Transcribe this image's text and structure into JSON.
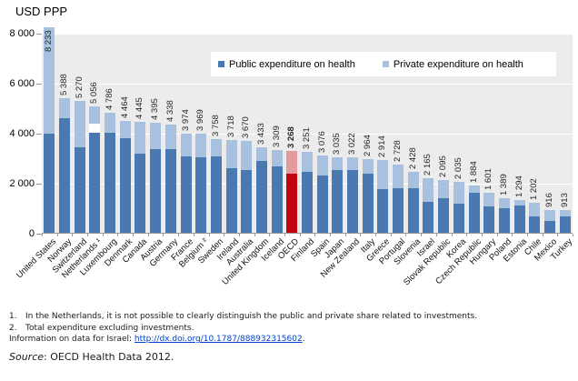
{
  "chart_title": "USD PPP",
  "chart_data": {
    "type": "bar",
    "stacked": true,
    "title": "USD PPP",
    "ylim": [
      0,
      8000
    ],
    "yticks": [
      0,
      2000,
      4000,
      6000,
      8000
    ],
    "ytick_labels": [
      "0",
      "2 000",
      "4 000",
      "6 000",
      "8 000"
    ],
    "grid": "horizontal",
    "legend_position": "top-right-inside",
    "categories": [
      "United States",
      "Norway",
      "Switzerland",
      "Netherlands ¹",
      "Luxembourg",
      "Denmark",
      "Canada",
      "Austria",
      "Germany",
      "France",
      "Belgium ²",
      "Sweden",
      "Ireland",
      "Australia",
      "United Kingdom",
      "Iceland",
      "OECD",
      "Finland",
      "Spain",
      "Japan",
      "New Zealand",
      "Italy",
      "Greece",
      "Portugal",
      "Slovenia",
      "Israel",
      "Slovak Republic",
      "Korea",
      "Czech Republic",
      "Hungary",
      "Poland",
      "Estonia",
      "Chile",
      "Mexico",
      "Turkey"
    ],
    "series": [
      {
        "name": "Public expenditure on health",
        "color": "#4a79b2",
        "values": [
          3967,
          4580,
          3430,
          4010,
          4010,
          3800,
          3160,
          3336,
          3330,
          3060,
          3018,
          3043,
          2582,
          2520,
          2856,
          2656,
          2360,
          2450,
          2280,
          2500,
          2520,
          2360,
          1745,
          1800,
          1770,
          1250,
          1370,
          1165,
          1590,
          1065,
          982,
          1080,
          640,
          480,
          670
        ]
      },
      {
        "name": "Private expenditure on health",
        "color": "#a7c1df",
        "values": [
          4266,
          808,
          1840,
          682,
          776,
          664,
          1285,
          1059,
          1008,
          914,
          951,
          715,
          1136,
          1150,
          577,
          653,
          908,
          801,
          796,
          535,
          502,
          604,
          1169,
          928,
          658,
          915,
          725,
          870,
          294,
          536,
          407,
          214,
          562,
          436,
          243
        ]
      }
    ],
    "totals": [
      8233,
      5388,
      5270,
      5056,
      4786,
      4464,
      4445,
      4395,
      4338,
      3974,
      3969,
      3758,
      3718,
      3670,
      3433,
      3309,
      3268,
      3251,
      3076,
      3035,
      3022,
      2964,
      2914,
      2728,
      2428,
      2165,
      2095,
      2035,
      1884,
      1601,
      1389,
      1294,
      1202,
      916,
      913
    ],
    "total_labels": [
      "8 233",
      "5 388",
      "5 270",
      "5 056",
      "4 786",
      "4 464",
      "4 445",
      "4 395",
      "4 338",
      "3 974",
      "3 969",
      "3 758",
      "3 718",
      "3 670",
      "3 433",
      "3 309",
      "3 268",
      "3 251",
      "3 076",
      "3 035",
      "3 022",
      "2 964",
      "2 914",
      "2 728",
      "2 428",
      "2 165",
      "2 095",
      "2 035",
      "1 884",
      "1 601",
      "1 389",
      "1 294",
      "1 202",
      "916",
      "913"
    ],
    "highlight": {
      "category": "OECD",
      "index": 16,
      "public_color": "#c00511",
      "private_color": "#e29a9e"
    },
    "special_gap": {
      "index": 3,
      "gap_value": 364,
      "color": "#ffffff"
    }
  },
  "legend_items": [
    {
      "label": "Public expenditure on health",
      "color": "#4a79b2"
    },
    {
      "label": "Private expenditure on health",
      "color": "#a7c1df"
    }
  ],
  "footnotes": {
    "note1_num": "1.",
    "note1": "In the Netherlands, it is not possible to clearly distinguish the public and private share related to investments.",
    "note2_num": "2.",
    "note2": "Total expenditure excluding investments.",
    "israel_prefix": "Information on data for Israel: ",
    "israel_link": "http://dx.doi.org/10.1787/888932315602",
    "israel_suffix": "."
  },
  "source": {
    "word": "Source",
    "text": ": OECD Health Data 2012."
  }
}
